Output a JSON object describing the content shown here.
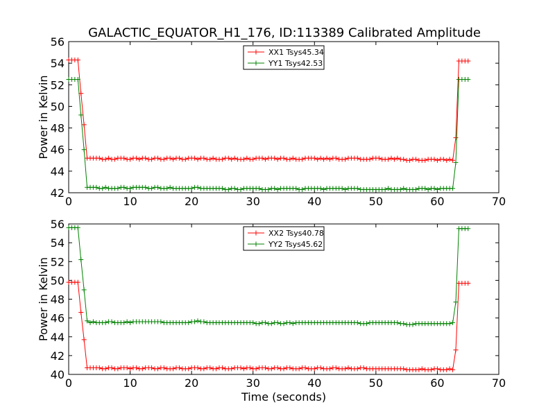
{
  "title": "GALACTIC_EQUATOR_H1_176, ID:113389 Calibrated Amplitude",
  "colors": {
    "xx": "#ff0000",
    "yy": "#008000",
    "axes": "#000000",
    "background": "#ffffff"
  },
  "chart_data": [
    {
      "type": "line",
      "marker": "plus",
      "xlabel": "",
      "ylabel": "Power in Kelvin",
      "xlim": [
        0,
        70
      ],
      "ylim": [
        42,
        56
      ],
      "xticks": [
        0,
        10,
        20,
        30,
        40,
        50,
        60,
        70
      ],
      "yticks": [
        42,
        44,
        46,
        48,
        50,
        52,
        54,
        56
      ],
      "legend_position": "top-center",
      "grid": false,
      "sample_rate_s": 0.5,
      "series": [
        {
          "name": "XX1 Tsys45.34",
          "color": "#ff0000",
          "t_start": 0,
          "values": [
            54.3,
            54.3,
            54.3,
            54.3,
            51.2,
            48.3,
            45.2,
            45.2,
            45.2,
            45.2,
            45.2,
            45.1,
            45.1,
            45.2,
            45.1,
            45.1,
            45.2,
            45.2,
            45.2,
            45.1,
            45.1,
            45.2,
            45.2,
            45.1,
            45.2,
            45.2,
            45.1,
            45.1,
            45.2,
            45.2,
            45.1,
            45.1,
            45.2,
            45.2,
            45.1,
            45.2,
            45.2,
            45.1,
            45.1,
            45.2,
            45.2,
            45.2,
            45.1,
            45.2,
            45.2,
            45.1,
            45.1,
            45.2,
            45.1,
            45.1,
            45.1,
            45.2,
            45.2,
            45.1,
            45.2,
            45.1,
            45.1,
            45.1,
            45.2,
            45.1,
            45.1,
            45.2,
            45.2,
            45.2,
            45.1,
            45.2,
            45.2,
            45.2,
            45.1,
            45.2,
            45.2,
            45.1,
            45.1,
            45.2,
            45.1,
            45.1,
            45.1,
            45.2,
            45.2,
            45.2,
            45.2,
            45.1,
            45.2,
            45.1,
            45.2,
            45.1,
            45.2,
            45.2,
            45.1,
            45.1,
            45.1,
            45.2,
            45.2,
            45.2,
            45.2,
            45.1,
            45.1,
            45.1,
            45.1,
            45.2,
            45.2,
            45.2,
            45.1,
            45.1,
            45.1,
            45.2,
            45.1,
            45.2,
            45.1,
            45.1,
            45.0,
            45.0,
            45.1,
            45.1,
            45.0,
            45.0,
            45.0,
            45.1,
            45.1,
            45.1,
            45.0,
            45.1,
            45.1,
            45.0,
            45.1,
            45.0,
            47.1,
            54.2,
            54.2,
            54.2,
            54.2
          ]
        },
        {
          "name": "YY1 Tsys42.53",
          "color": "#008000",
          "t_start": 0,
          "values": [
            52.5,
            52.5,
            52.5,
            52.5,
            49.2,
            46.0,
            42.5,
            42.5,
            42.5,
            42.5,
            42.4,
            42.4,
            42.5,
            42.4,
            42.4,
            42.4,
            42.4,
            42.5,
            42.5,
            42.4,
            42.4,
            42.5,
            42.5,
            42.5,
            42.5,
            42.5,
            42.4,
            42.4,
            42.5,
            42.5,
            42.4,
            42.4,
            42.4,
            42.5,
            42.4,
            42.4,
            42.4,
            42.4,
            42.4,
            42.4,
            42.4,
            42.5,
            42.5,
            42.4,
            42.4,
            42.4,
            42.4,
            42.4,
            42.4,
            42.4,
            42.4,
            42.3,
            42.3,
            42.4,
            42.4,
            42.3,
            42.3,
            42.4,
            42.4,
            42.4,
            42.4,
            42.4,
            42.4,
            42.3,
            42.3,
            42.3,
            42.4,
            42.4,
            42.3,
            42.4,
            42.4,
            42.4,
            42.4,
            42.4,
            42.4,
            42.3,
            42.3,
            42.4,
            42.4,
            42.4,
            42.4,
            42.4,
            42.4,
            42.3,
            42.4,
            42.4,
            42.4,
            42.4,
            42.4,
            42.4,
            42.3,
            42.4,
            42.4,
            42.4,
            42.4,
            42.3,
            42.3,
            42.3,
            42.3,
            42.3,
            42.3,
            42.3,
            42.3,
            42.3,
            42.4,
            42.3,
            42.3,
            42.3,
            42.3,
            42.4,
            42.3,
            42.3,
            42.3,
            42.3,
            42.4,
            42.4,
            42.4,
            42.3,
            42.4,
            42.4,
            42.3,
            42.4,
            42.4,
            42.4,
            42.4,
            42.4,
            44.8,
            52.5,
            52.5,
            52.5,
            52.5
          ]
        }
      ]
    },
    {
      "type": "line",
      "marker": "plus",
      "xlabel": "Time (seconds)",
      "ylabel": "Power in Kelvin",
      "xlim": [
        0,
        70
      ],
      "ylim": [
        40,
        56
      ],
      "xticks": [
        0,
        10,
        20,
        30,
        40,
        50,
        60,
        70
      ],
      "yticks": [
        40,
        42,
        44,
        46,
        48,
        50,
        52,
        54,
        56
      ],
      "legend_position": "top-center",
      "grid": false,
      "sample_rate_s": 0.5,
      "series": [
        {
          "name": "XX2 Tsys40.78",
          "color": "#ff0000",
          "t_start": 0,
          "values": [
            49.8,
            49.8,
            49.8,
            49.8,
            46.6,
            43.7,
            40.7,
            40.7,
            40.7,
            40.7,
            40.7,
            40.6,
            40.6,
            40.7,
            40.7,
            40.6,
            40.6,
            40.7,
            40.7,
            40.7,
            40.6,
            40.7,
            40.7,
            40.6,
            40.6,
            40.7,
            40.7,
            40.7,
            40.6,
            40.6,
            40.7,
            40.7,
            40.6,
            40.6,
            40.6,
            40.7,
            40.7,
            40.6,
            40.6,
            40.6,
            40.7,
            40.7,
            40.7,
            40.6,
            40.6,
            40.7,
            40.7,
            40.6,
            40.6,
            40.7,
            40.7,
            40.6,
            40.6,
            40.6,
            40.7,
            40.7,
            40.7,
            40.6,
            40.7,
            40.7,
            40.6,
            40.6,
            40.7,
            40.7,
            40.7,
            40.6,
            40.6,
            40.7,
            40.7,
            40.6,
            40.6,
            40.7,
            40.7,
            40.6,
            40.6,
            40.6,
            40.7,
            40.7,
            40.6,
            40.6,
            40.6,
            40.7,
            40.7,
            40.6,
            40.6,
            40.6,
            40.7,
            40.7,
            40.6,
            40.6,
            40.6,
            40.7,
            40.6,
            40.6,
            40.6,
            40.7,
            40.7,
            40.6,
            40.6,
            40.6,
            40.6,
            40.6,
            40.6,
            40.6,
            40.6,
            40.6,
            40.6,
            40.6,
            40.6,
            40.6,
            40.5,
            40.5,
            40.5,
            40.5,
            40.5,
            40.6,
            40.5,
            40.5,
            40.5,
            40.6,
            40.6,
            40.5,
            40.5,
            40.5,
            40.6,
            40.5,
            42.6,
            49.7,
            49.7,
            49.7,
            49.7
          ]
        },
        {
          "name": "YY2 Tsys45.62",
          "color": "#008000",
          "t_start": 0,
          "values": [
            55.6,
            55.6,
            55.6,
            55.6,
            52.2,
            49.0,
            45.7,
            45.5,
            45.6,
            45.5,
            45.5,
            45.5,
            45.5,
            45.6,
            45.6,
            45.5,
            45.5,
            45.5,
            45.5,
            45.6,
            45.5,
            45.6,
            45.6,
            45.6,
            45.6,
            45.6,
            45.6,
            45.6,
            45.6,
            45.6,
            45.6,
            45.5,
            45.5,
            45.5,
            45.5,
            45.5,
            45.5,
            45.5,
            45.5,
            45.5,
            45.6,
            45.6,
            45.7,
            45.6,
            45.6,
            45.5,
            45.5,
            45.5,
            45.5,
            45.5,
            45.5,
            45.5,
            45.5,
            45.5,
            45.5,
            45.5,
            45.5,
            45.5,
            45.5,
            45.5,
            45.5,
            45.4,
            45.4,
            45.5,
            45.5,
            45.4,
            45.4,
            45.5,
            45.5,
            45.4,
            45.4,
            45.5,
            45.5,
            45.4,
            45.5,
            45.5,
            45.5,
            45.5,
            45.5,
            45.5,
            45.5,
            45.5,
            45.5,
            45.5,
            45.5,
            45.5,
            45.5,
            45.5,
            45.5,
            45.5,
            45.5,
            45.5,
            45.5,
            45.5,
            45.5,
            45.4,
            45.4,
            45.4,
            45.5,
            45.5,
            45.5,
            45.5,
            45.5,
            45.5,
            45.5,
            45.5,
            45.5,
            45.5,
            45.4,
            45.4,
            45.3,
            45.3,
            45.3,
            45.4,
            45.4,
            45.4,
            45.4,
            45.4,
            45.4,
            45.4,
            45.4,
            45.4,
            45.4,
            45.4,
            45.4,
            45.5,
            47.7,
            55.5,
            55.5,
            55.5,
            55.5
          ]
        }
      ]
    }
  ]
}
